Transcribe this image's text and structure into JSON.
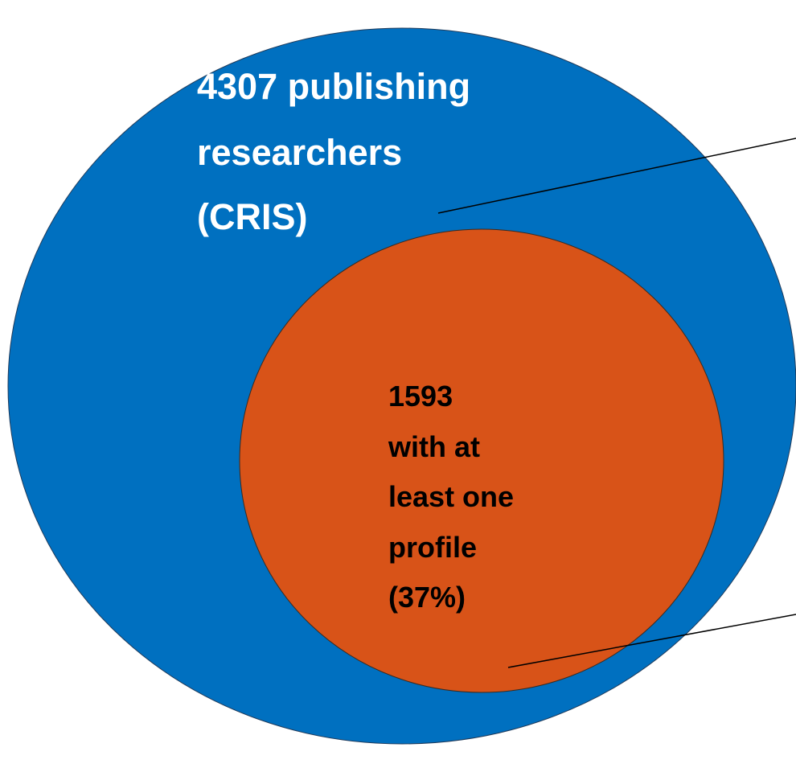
{
  "outer_label": {
    "lines": [
      "4307 publishing",
      "researchers",
      "(CRIS)"
    ]
  },
  "inner_label": {
    "lines": [
      "1593",
      "with at",
      "least one",
      "profile",
      "(37%)"
    ]
  }
}
